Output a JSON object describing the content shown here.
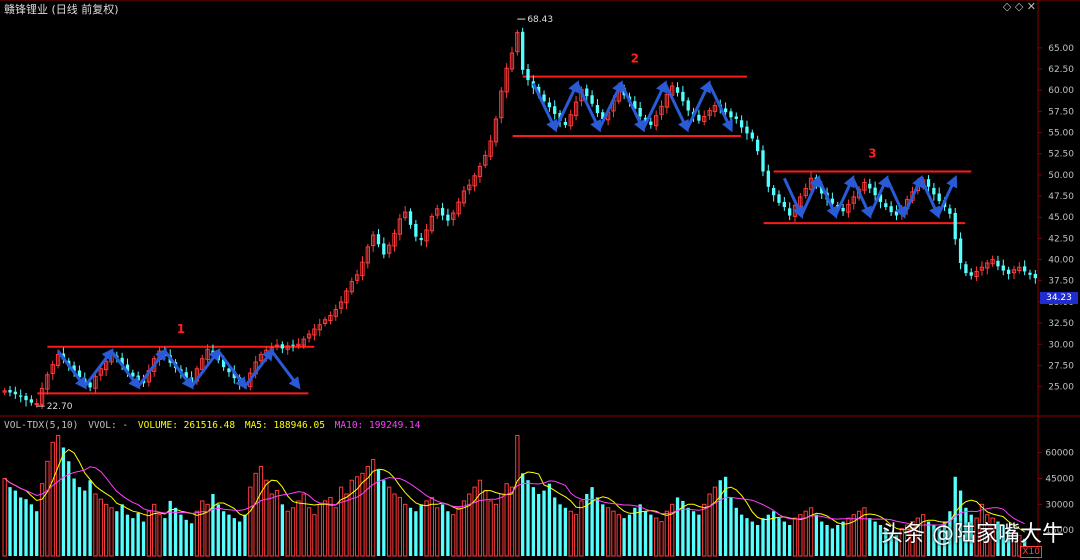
{
  "header": {
    "title": "赣锋锂业 (日线 前复权)",
    "right_icons": [
      "diamond-icon",
      "diamond-icon",
      "close-icon"
    ]
  },
  "colors": {
    "background": "#000000",
    "up_candle": "#ff3b3b",
    "down_candle": "#54ffff",
    "resistance_line": "#ff1a1a",
    "arrow": "#2a5bd7",
    "grid": "#5a0000",
    "axis_text": "#c0c0c0",
    "volume_text": "#ffff00",
    "ma5_text": "#ffff00",
    "ma10_text": "#ff40ff"
  },
  "volume_header": {
    "indicator": "VOL-TDX(5,10)",
    "vvol": "VVOL: -",
    "volume": "VOLUME: 261516.48",
    "ma5": "MA5: 188946.05",
    "ma10": "MA10: 199249.14"
  },
  "watermark": "头条 @陆家嘴大牛",
  "x10_badge": "X10",
  "last_price": "34.23",
  "annotations": {
    "high_label": "68.43",
    "low_label": "22.70",
    "box_labels": [
      "1",
      "2",
      "3"
    ]
  },
  "chart_data": [
    {
      "type": "candlestick",
      "title": "赣锋锂业 (日线 前复权)",
      "ylim": [
        22.0,
        69.0
      ],
      "y_ticks": [
        "65.00",
        "62.50",
        "60.00",
        "57.50",
        "55.00",
        "52.50",
        "50.00",
        "47.50",
        "45.00",
        "42.50",
        "40.00",
        "37.50",
        "35.00",
        "32.50",
        "30.00",
        "27.50",
        "25.00"
      ],
      "closes": [
        24.5,
        24.3,
        24.1,
        23.8,
        23.4,
        23.1,
        23.0,
        24.8,
        26.4,
        27.6,
        28.8,
        28.2,
        27.4,
        26.8,
        26.1,
        25.4,
        24.9,
        26.2,
        27.1,
        28.0,
        28.8,
        28.3,
        27.5,
        26.8,
        26.2,
        25.7,
        25.4,
        26.9,
        28.3,
        29.2,
        28.6,
        27.8,
        27.2,
        26.6,
        26.0,
        25.5,
        27.1,
        28.3,
        29.4,
        28.9,
        28.1,
        27.3,
        26.7,
        26.0,
        25.4,
        25.1,
        26.6,
        27.9,
        28.8,
        29.3,
        29.6,
        29.9,
        29.5,
        29.8,
        29.9,
        30.0,
        30.6,
        31.2,
        31.8,
        32.3,
        32.9,
        33.4,
        34.1,
        35.0,
        36.3,
        37.4,
        38.2,
        39.7,
        41.5,
        42.9,
        41.8,
        40.6,
        41.7,
        43.1,
        44.8,
        45.6,
        44.1,
        42.7,
        42.3,
        43.5,
        45.1,
        46.0,
        45.2,
        44.6,
        45.5,
        46.8,
        48.1,
        48.8,
        49.9,
        51.0,
        52.3,
        54.0,
        56.6,
        59.9,
        62.6,
        64.4,
        66.8,
        62.4,
        61.2,
        60.3,
        59.4,
        58.7,
        58.0,
        57.2,
        56.4,
        55.9,
        57.1,
        58.6,
        60.1,
        59.3,
        58.4,
        57.3,
        56.6,
        57.4,
        58.8,
        60.2,
        59.4,
        58.6,
        57.8,
        56.9,
        56.2,
        55.9,
        57.0,
        58.1,
        59.5,
        60.5,
        59.7,
        58.7,
        57.6,
        57.0,
        56.4,
        56.9,
        57.6,
        58.2,
        58.0,
        57.4,
        56.8,
        56.6,
        55.6,
        54.9,
        54.3,
        52.8,
        50.4,
        48.6,
        47.6,
        46.7,
        46.2,
        45.2,
        46.4,
        47.4,
        48.4,
        49.6,
        48.9,
        47.8,
        47.1,
        46.6,
        46.0,
        45.7,
        46.5,
        47.4,
        48.3,
        49.1,
        48.4,
        47.6,
        46.8,
        46.2,
        45.6,
        45.2,
        46.1,
        47.1,
        48.0,
        48.9,
        49.4,
        48.6,
        47.7,
        46.9,
        46.2,
        45.4,
        42.4,
        39.6,
        38.4,
        38.1,
        38.6,
        39.1,
        39.6,
        40.0,
        39.2,
        38.7,
        38.3,
        38.8,
        39.1,
        38.6,
        38.2,
        37.8
      ]
    },
    {
      "type": "bar",
      "title": "VOL-TDX(5,10)",
      "y_ticks": [
        "60000",
        "45000",
        "30000",
        "15000"
      ],
      "values": [
        45000,
        40000,
        38000,
        34000,
        33000,
        30000,
        26000,
        42000,
        55000,
        66000,
        70000,
        63000,
        55000,
        45000,
        40000,
        38000,
        44000,
        36000,
        33000,
        30000,
        28000,
        26000,
        30000,
        24000,
        22000,
        25000,
        20000,
        26000,
        30000,
        24000,
        22000,
        32000,
        28000,
        24000,
        21000,
        19000,
        26000,
        32000,
        30000,
        36000,
        30000,
        26000,
        24000,
        22000,
        20000,
        24000,
        40000,
        48000,
        52000,
        44000,
        36000,
        38000,
        30000,
        26000,
        28000,
        32000,
        36000,
        28000,
        24000,
        30000,
        32000,
        34000,
        28000,
        40000,
        36000,
        44000,
        46000,
        48000,
        52000,
        56000,
        50000,
        44000,
        40000,
        36000,
        34000,
        30000,
        28000,
        26000,
        30000,
        32000,
        34000,
        28000,
        30000,
        26000,
        24000,
        28000,
        32000,
        36000,
        40000,
        44000,
        38000,
        32000,
        30000,
        36000,
        42000,
        40000,
        70000,
        48000,
        44000,
        40000,
        36000,
        38000,
        42000,
        34000,
        30000,
        28000,
        26000,
        24000,
        32000,
        36000,
        40000,
        34000,
        30000,
        28000,
        26000,
        24000,
        22000,
        24000,
        28000,
        30000,
        26000,
        24000,
        22000,
        20000,
        26000,
        30000,
        34000,
        32000,
        28000,
        26000,
        24000,
        30000,
        36000,
        40000,
        44000,
        46000,
        34000,
        28000,
        24000,
        22000,
        20000,
        18000,
        22000,
        24000,
        26000,
        22000,
        20000,
        18000,
        22000,
        24000,
        26000,
        28000,
        24000,
        20000,
        18000,
        16000,
        18000,
        20000,
        22000,
        24000,
        26000,
        28000,
        22000,
        20000,
        18000,
        16000,
        14000,
        12000,
        16000,
        18000,
        20000,
        22000,
        24000,
        20000,
        18000,
        16000,
        20000,
        26000,
        46000,
        38000,
        28000,
        24000,
        22000,
        30000,
        24000,
        22000,
        20000,
        18000,
        16000,
        14000,
        12000,
        10000
      ]
    }
  ]
}
